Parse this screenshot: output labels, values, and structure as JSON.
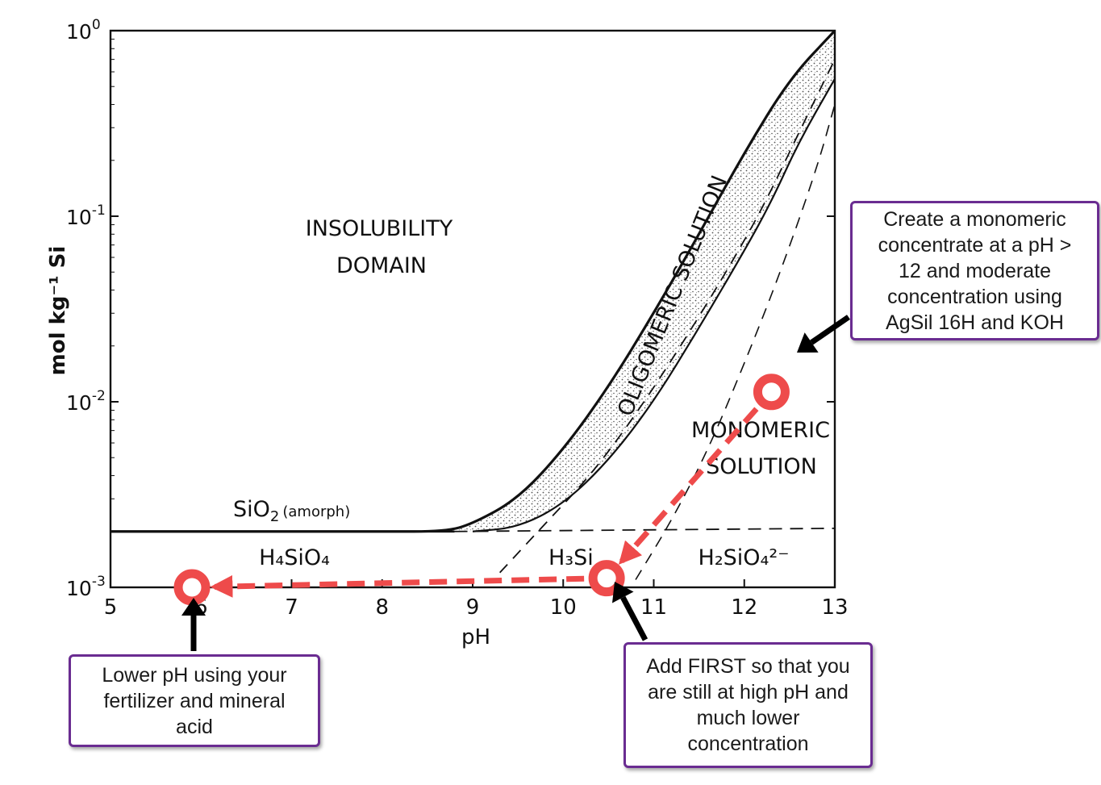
{
  "chart_data": {
    "type": "line",
    "xlabel": "pH",
    "ylabel": "mol kg⁻¹ Si",
    "xlim": [
      5,
      13
    ],
    "ylim": [
      0.001,
      1
    ],
    "y_scale": "log",
    "x_ticks": [
      "5",
      "6",
      "7",
      "8",
      "9",
      "10",
      "11",
      "12",
      "13"
    ],
    "y_ticks": [
      {
        "base": "10",
        "exp": "0"
      },
      {
        "base": "10",
        "exp": "-1"
      },
      {
        "base": "10",
        "exp": "-2"
      },
      {
        "base": "10",
        "exp": "-3"
      }
    ],
    "grid": false,
    "region_labels": {
      "insolubility_1": "INSOLUBILITY",
      "insolubility_2": "DOMAIN",
      "oligomeric": "OLIGOMERIC  SOLUTION",
      "monomeric_1": "MONOMERIC",
      "monomeric_2": "SOLUTION",
      "sio2": "SiO",
      "sio2_sub": "2",
      "sio2_note": "(amorph)",
      "h4sio4": "H₄SiO₄",
      "h3sio4": "H₃Si",
      "h2sio4": "H₂SiO₄²⁻"
    },
    "series": [
      {
        "role": "solubility-boundary",
        "x": [
          5.0,
          8.0,
          8.7,
          9.0,
          9.5,
          10.0,
          10.5,
          11.0,
          11.5,
          12.0,
          12.5,
          13.0
        ],
        "y": [
          0.002,
          0.002,
          0.002,
          0.0022,
          0.003,
          0.0055,
          0.012,
          0.03,
          0.08,
          0.22,
          0.55,
          1.0
        ]
      },
      {
        "role": "oligomeric-monomeric-boundary",
        "x": [
          9.0,
          9.5,
          10.0,
          10.5,
          11.0,
          11.5,
          12.0,
          12.3,
          12.6,
          13.0
        ],
        "y": [
          0.002,
          0.0021,
          0.0028,
          0.0048,
          0.01,
          0.025,
          0.065,
          0.12,
          0.25,
          0.55
        ]
      },
      {
        "role": "species-boundary",
        "x": [
          5.0,
          13.0
        ],
        "y": [
          0.002,
          0.002
        ]
      }
    ],
    "points": [
      {
        "x": 12.3,
        "y": 0.0113
      },
      {
        "x": 10.48,
        "y": 0.00112
      },
      {
        "x": 5.9,
        "y": 0.001
      }
    ],
    "colors": {
      "path": "#ee4b4b",
      "callout_border": "#6a2c91",
      "ink": "#111111"
    }
  },
  "callouts": {
    "right": [
      "Create a monomeric",
      "concentrate at a pH >",
      "12 and moderate",
      "concentration using",
      "AgSil 16H and KOH"
    ],
    "bottom_left": [
      "Lower pH using your",
      "fertilizer and mineral",
      "acid"
    ],
    "bottom_right": [
      "Add FIRST so that you",
      "are still at high pH and",
      "much lower",
      "concentration"
    ]
  }
}
